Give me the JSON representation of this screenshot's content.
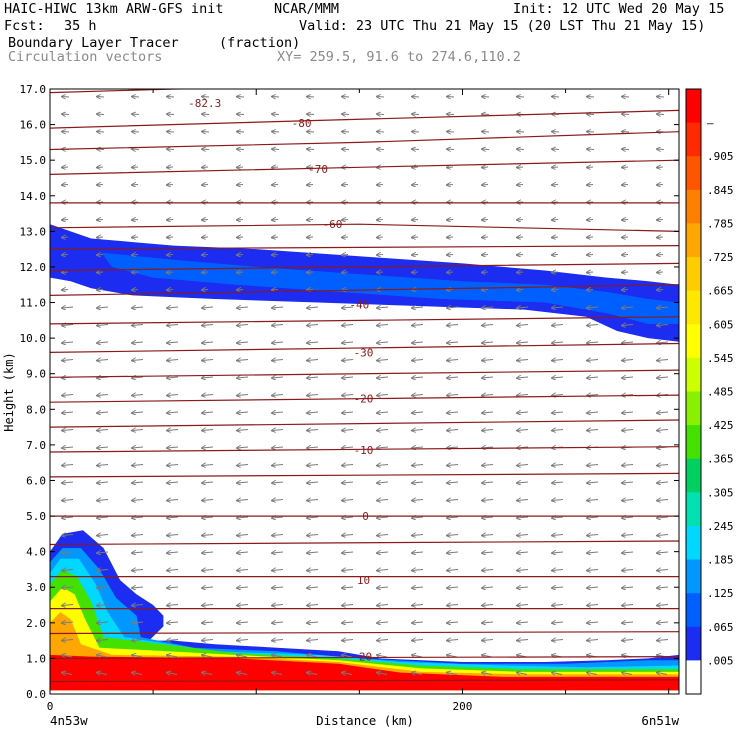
{
  "header": {
    "model_title": "HAIC-HIWC 13km ARW-GFS init",
    "center": "NCAR/MMM",
    "init": "Init: 12 UTC Wed 20 May 15",
    "fcst_label": "Fcst:",
    "fcst_value": "35 h",
    "valid": "Valid: 23 UTC Thu 21 May 15 (20 LST Thu 21 May 15)",
    "field_name": "Boundary Layer Tracer",
    "field_units": "(fraction)",
    "vector_name": "Circulation vectors",
    "xy_range": "XY= 259.5, 91.6 to 274.6,110.2"
  },
  "chart_data": {
    "type": "heatmap",
    "xlabel": "Distance (km)",
    "ylabel": "Height (km)",
    "xlim": [
      0,
      305
    ],
    "ylim": [
      0,
      17
    ],
    "x_ticks": [
      {
        "value": 0,
        "label": "0"
      },
      {
        "value": 200,
        "label": "200"
      }
    ],
    "x_endpoint_labels": {
      "left": "4n53w",
      "right": "6n51w"
    },
    "y_ticks": [
      "0.0",
      "1.0",
      "2.0",
      "3.0",
      "4.0",
      "5.0",
      "6.0",
      "7.0",
      "8.0",
      "9.0",
      "10.0",
      "11.0",
      "12.0",
      "13.0",
      "14.0",
      "15.0",
      "16.0",
      "17.0"
    ],
    "colorbar": {
      "labels": [
        "–",
        ".905",
        ".845",
        ".785",
        ".725",
        ".665",
        ".605",
        ".545",
        ".485",
        ".425",
        ".365",
        ".305",
        ".245",
        ".185",
        ".125",
        ".065",
        ".005"
      ],
      "colors": [
        "#ff0000",
        "#ff2a00",
        "#ff5500",
        "#ff8000",
        "#ffa600",
        "#ffcc00",
        "#ffe800",
        "#ffff00",
        "#ccff00",
        "#88f000",
        "#44e000",
        "#00d060",
        "#00e0b0",
        "#00d8ff",
        "#0098ff",
        "#0060ff",
        "#1c2cf0",
        "#ffffff"
      ]
    },
    "tracer_regions": [
      {
        "name": "upper-outflow",
        "color": "#1c2cf0",
        "outline": [
          [
            0,
            13.2
          ],
          [
            20,
            12.8
          ],
          [
            60,
            12.6
          ],
          [
            100,
            12.5
          ],
          [
            150,
            12.3
          ],
          [
            200,
            12.1
          ],
          [
            240,
            11.9
          ],
          [
            270,
            11.7
          ],
          [
            290,
            11.6
          ],
          [
            305,
            11.5
          ],
          [
            305,
            9.9
          ],
          [
            290,
            10.0
          ],
          [
            275,
            10.2
          ],
          [
            260,
            10.6
          ],
          [
            230,
            10.8
          ],
          [
            180,
            10.9
          ],
          [
            130,
            11.0
          ],
          [
            80,
            11.1
          ],
          [
            40,
            11.2
          ],
          [
            20,
            11.4
          ],
          [
            10,
            11.6
          ],
          [
            0,
            11.7
          ]
        ]
      },
      {
        "name": "upper-core",
        "color": "#0060ff",
        "outline": [
          [
            25,
            12.4
          ],
          [
            60,
            12.2
          ],
          [
            100,
            12.0
          ],
          [
            150,
            11.8
          ],
          [
            200,
            11.6
          ],
          [
            240,
            11.5
          ],
          [
            270,
            11.3
          ],
          [
            290,
            11.1
          ],
          [
            305,
            11.0
          ],
          [
            305,
            10.4
          ],
          [
            290,
            10.4
          ],
          [
            270,
            10.7
          ],
          [
            240,
            11.0
          ],
          [
            190,
            11.1
          ],
          [
            140,
            11.3
          ],
          [
            90,
            11.5
          ],
          [
            50,
            11.7
          ],
          [
            30,
            12.0
          ]
        ]
      },
      {
        "name": "bl-outer",
        "color": "#1c2cf0",
        "outline": [
          [
            0,
            0.1
          ],
          [
            0,
            4.0
          ],
          [
            6,
            4.5
          ],
          [
            16,
            4.6
          ],
          [
            26,
            4.1
          ],
          [
            34,
            3.2
          ],
          [
            42,
            2.8
          ],
          [
            50,
            2.5
          ],
          [
            55,
            2.2
          ],
          [
            55,
            1.9
          ],
          [
            48,
            1.5
          ],
          [
            60,
            1.5
          ],
          [
            80,
            1.4
          ],
          [
            110,
            1.3
          ],
          [
            140,
            1.2
          ],
          [
            160,
            1.0
          ],
          [
            200,
            0.9
          ],
          [
            240,
            0.9
          ],
          [
            270,
            0.95
          ],
          [
            290,
            1.0
          ],
          [
            305,
            1.1
          ],
          [
            305,
            0.1
          ]
        ]
      },
      {
        "name": "bl-light-blue",
        "color": "#0098ff",
        "outline": [
          [
            0,
            0.1
          ],
          [
            0,
            3.7
          ],
          [
            6,
            4.1
          ],
          [
            15,
            4.1
          ],
          [
            24,
            3.5
          ],
          [
            32,
            2.7
          ],
          [
            42,
            2.2
          ],
          [
            44,
            1.6
          ],
          [
            70,
            1.3
          ],
          [
            110,
            1.2
          ],
          [
            150,
            1.0
          ],
          [
            200,
            0.85
          ],
          [
            250,
            0.85
          ],
          [
            290,
            0.95
          ],
          [
            305,
            0.95
          ],
          [
            305,
            0.1
          ]
        ]
      },
      {
        "name": "bl-cyan",
        "color": "#00d8ff",
        "outline": [
          [
            0,
            0.1
          ],
          [
            0,
            3.4
          ],
          [
            5,
            3.8
          ],
          [
            14,
            3.8
          ],
          [
            22,
            3.1
          ],
          [
            28,
            2.3
          ],
          [
            36,
            1.6
          ],
          [
            80,
            1.2
          ],
          [
            130,
            1.1
          ],
          [
            170,
            0.9
          ],
          [
            220,
            0.8
          ],
          [
            260,
            0.75
          ],
          [
            305,
            0.8
          ],
          [
            305,
            0.1
          ]
        ]
      },
      {
        "name": "bl-green",
        "color": "#44e000",
        "outline": [
          [
            0,
            0.1
          ],
          [
            0,
            3.1
          ],
          [
            6,
            3.5
          ],
          [
            13,
            3.3
          ],
          [
            20,
            2.6
          ],
          [
            26,
            1.6
          ],
          [
            90,
            1.15
          ],
          [
            140,
            1.0
          ],
          [
            180,
            0.8
          ],
          [
            230,
            0.7
          ],
          [
            305,
            0.7
          ],
          [
            305,
            0.1
          ]
        ]
      },
      {
        "name": "bl-yellow",
        "color": "#ffff00",
        "outline": [
          [
            0,
            0.1
          ],
          [
            0,
            2.6
          ],
          [
            6,
            3.0
          ],
          [
            12,
            2.8
          ],
          [
            17,
            2.1
          ],
          [
            24,
            1.3
          ],
          [
            90,
            1.1
          ],
          [
            140,
            0.95
          ],
          [
            180,
            0.72
          ],
          [
            230,
            0.62
          ],
          [
            305,
            0.62
          ],
          [
            305,
            0.1
          ]
        ]
      },
      {
        "name": "bl-orange",
        "color": "#ffa600",
        "outline": [
          [
            0,
            0.1
          ],
          [
            0,
            2.0
          ],
          [
            5,
            2.3
          ],
          [
            10,
            2.1
          ],
          [
            15,
            1.4
          ],
          [
            30,
            1.1
          ],
          [
            90,
            1.05
          ],
          [
            140,
            0.9
          ],
          [
            180,
            0.62
          ],
          [
            230,
            0.55
          ],
          [
            305,
            0.55
          ],
          [
            305,
            0.1
          ]
        ]
      },
      {
        "name": "bl-red",
        "color": "#ff0000",
        "outline": [
          [
            0,
            0.1
          ],
          [
            0,
            1.1
          ],
          [
            20,
            1.05
          ],
          [
            90,
            1.0
          ],
          [
            140,
            0.85
          ],
          [
            170,
            0.6
          ],
          [
            220,
            0.48
          ],
          [
            305,
            0.48
          ],
          [
            305,
            0.1
          ]
        ]
      }
    ],
    "isotherms": [
      {
        "label": "-82.3",
        "pts": [
          [
            0,
            16.9
          ],
          [
            60,
            17.0
          ],
          [
            305,
            17.2
          ]
        ],
        "label_at": [
          75,
          16.6
        ]
      },
      {
        "label": "-80",
        "pts": [
          [
            0,
            15.9
          ],
          [
            120,
            16.1
          ],
          [
            305,
            16.4
          ]
        ],
        "label_at": [
          122,
          16.05
        ]
      },
      {
        "label": "",
        "pts": [
          [
            0,
            15.3
          ],
          [
            150,
            15.5
          ],
          [
            305,
            15.8
          ]
        ]
      },
      {
        "label": "-70",
        "pts": [
          [
            0,
            14.6
          ],
          [
            150,
            14.8
          ],
          [
            305,
            15.0
          ]
        ],
        "label_at": [
          130,
          14.75
        ]
      },
      {
        "label": "",
        "pts": [
          [
            0,
            13.8
          ],
          [
            305,
            13.8
          ]
        ]
      },
      {
        "label": "-60",
        "pts": [
          [
            0,
            13.1
          ],
          [
            150,
            13.2
          ],
          [
            305,
            13.0
          ]
        ],
        "label_at": [
          137,
          13.2
        ]
      },
      {
        "label": "",
        "pts": [
          [
            0,
            12.5
          ],
          [
            305,
            12.6
          ]
        ]
      },
      {
        "label": "",
        "pts": [
          [
            0,
            11.9
          ],
          [
            150,
            12.0
          ],
          [
            305,
            12.1
          ]
        ]
      },
      {
        "label": "",
        "pts": [
          [
            0,
            11.2
          ],
          [
            305,
            11.5
          ]
        ]
      },
      {
        "label": "-40",
        "pts": [
          [
            0,
            10.4
          ],
          [
            305,
            10.6
          ]
        ],
        "label_at": [
          150,
          10.95
        ]
      },
      {
        "label": "-30",
        "pts": [
          [
            0,
            9.6
          ],
          [
            305,
            9.85
          ]
        ],
        "label_at": [
          152,
          9.6
        ]
      },
      {
        "label": "",
        "pts": [
          [
            0,
            8.9
          ],
          [
            305,
            9.1
          ]
        ]
      },
      {
        "label": "-20",
        "pts": [
          [
            0,
            8.2
          ],
          [
            305,
            8.4
          ]
        ],
        "label_at": [
          152,
          8.3
        ]
      },
      {
        "label": "",
        "pts": [
          [
            0,
            7.5
          ],
          [
            305,
            7.7
          ]
        ]
      },
      {
        "label": "-10",
        "pts": [
          [
            0,
            6.8
          ],
          [
            305,
            6.95
          ]
        ],
        "label_at": [
          152,
          6.85
        ]
      },
      {
        "label": "",
        "pts": [
          [
            0,
            6.1
          ],
          [
            305,
            6.2
          ]
        ]
      },
      {
        "label": "0",
        "pts": [
          [
            0,
            5.0
          ],
          [
            150,
            5.0
          ],
          [
            305,
            5.0
          ]
        ],
        "label_at": [
          153,
          5.0
        ]
      },
      {
        "label": "",
        "pts": [
          [
            0,
            4.2
          ],
          [
            305,
            4.3
          ]
        ]
      },
      {
        "label": "10",
        "pts": [
          [
            0,
            3.3
          ],
          [
            305,
            3.3
          ]
        ],
        "label_at": [
          152,
          3.2
        ]
      },
      {
        "label": "",
        "pts": [
          [
            0,
            2.4
          ],
          [
            305,
            2.4
          ]
        ]
      },
      {
        "label": "",
        "pts": [
          [
            0,
            1.7
          ],
          [
            305,
            1.75
          ]
        ]
      },
      {
        "label": "20",
        "pts": [
          [
            0,
            1.0
          ],
          [
            305,
            1.05
          ]
        ],
        "label_at": [
          153,
          1.05
        ]
      },
      {
        "label": "",
        "pts": [
          [
            0,
            0.35
          ],
          [
            305,
            0.4
          ]
        ]
      }
    ]
  }
}
